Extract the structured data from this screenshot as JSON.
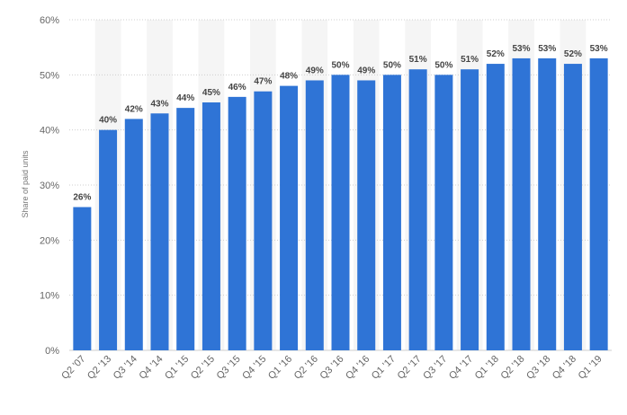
{
  "chart_data": {
    "type": "bar",
    "title": "",
    "xlabel": "",
    "ylabel": "Share of paid units",
    "categories": [
      "Q2 '07",
      "Q2 '13",
      "Q3 '14",
      "Q4 '14",
      "Q1 '15",
      "Q2 '15",
      "Q3 '15",
      "Q4 '15",
      "Q1 '16",
      "Q2 '16",
      "Q3 '16",
      "Q4 '16",
      "Q1 '17",
      "Q2 '17",
      "Q3 '17",
      "Q4 '17",
      "Q1 '18",
      "Q2 '18",
      "Q3 '18",
      "Q4 '18",
      "Q1 '19"
    ],
    "values": [
      26,
      40,
      42,
      43,
      44,
      45,
      46,
      47,
      48,
      49,
      50,
      49,
      50,
      51,
      50,
      51,
      52,
      53,
      53,
      52,
      53
    ],
    "data_labels": [
      "26%",
      "40%",
      "42%",
      "43%",
      "44%",
      "45%",
      "46%",
      "47%",
      "48%",
      "49%",
      "50%",
      "49%",
      "50%",
      "51%",
      "50%",
      "51%",
      "52%",
      "53%",
      "53%",
      "52%",
      "53%"
    ],
    "ylim": [
      0,
      60
    ],
    "yticks": [
      0,
      10,
      20,
      30,
      40,
      50,
      60
    ],
    "ytick_labels": [
      "0%",
      "10%",
      "20%",
      "30%",
      "40%",
      "50%",
      "60%"
    ],
    "grid": true,
    "legend": "none",
    "colors": {
      "bar": "#2f74d6",
      "band": "#f5f5f5",
      "grid": "#cfcfcf"
    }
  }
}
